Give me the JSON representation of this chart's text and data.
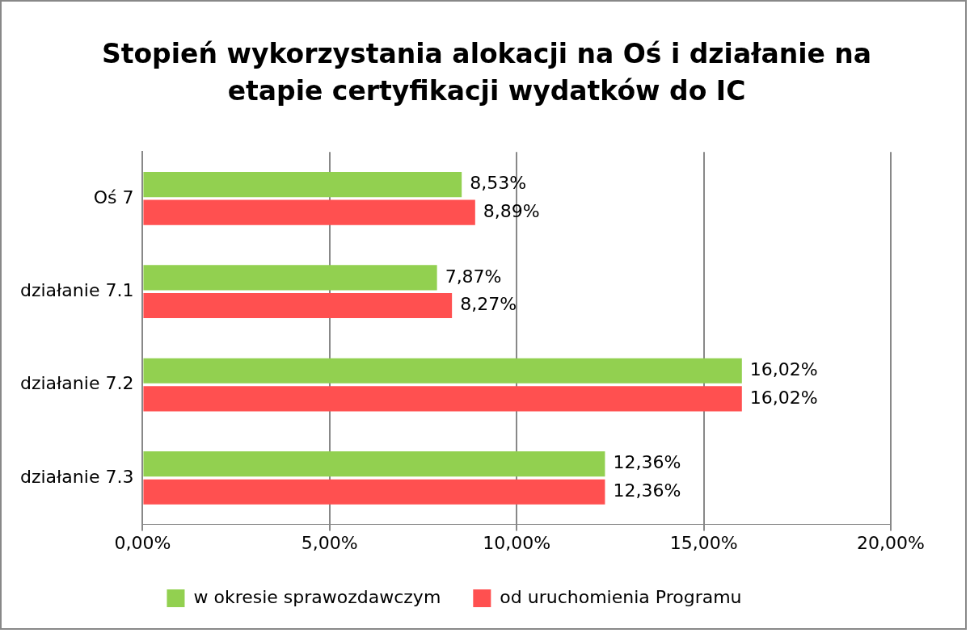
{
  "chart_data": {
    "type": "bar",
    "orientation": "horizontal",
    "title": "Stopień wykorzystania alokacji na Oś i działanie na etapie certyfikacji wydatków do IC",
    "categories": [
      "Oś 7",
      "działanie 7.1",
      "działanie 7.2",
      "działanie 7.3"
    ],
    "series": [
      {
        "name": "w okresie sprawozdawczym",
        "color": "#92d050",
        "values": [
          8.53,
          7.87,
          16.02,
          12.36
        ],
        "value_labels": [
          "8,53%",
          "7,87%",
          "16,02%",
          "12,36%"
        ]
      },
      {
        "name": "od uruchomienia Programu",
        "color": "#ff5050",
        "values": [
          8.89,
          8.27,
          16.02,
          12.36
        ],
        "value_labels": [
          "8,89%",
          "8,27%",
          "16,02%",
          "12,36%"
        ]
      }
    ],
    "xlim": [
      0,
      20
    ],
    "xticks": [
      {
        "value": 0,
        "label": "0,00%"
      },
      {
        "value": 5,
        "label": "5,00%"
      },
      {
        "value": 10,
        "label": "10,00%"
      },
      {
        "value": 15,
        "label": "15,00%"
      },
      {
        "value": 20,
        "label": "20,00%"
      }
    ],
    "grid": "x",
    "legend": "bottom"
  }
}
